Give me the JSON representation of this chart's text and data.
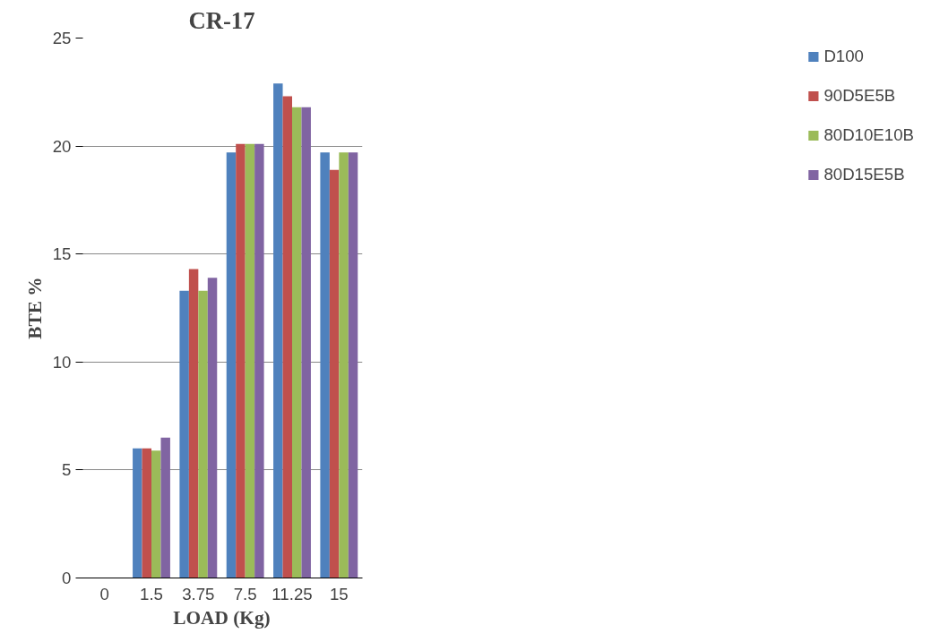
{
  "chart_data": {
    "type": "bar",
    "title": "CR-17",
    "xlabel": "LOAD (Kg)",
    "ylabel": "BTE %",
    "categories": [
      "0",
      "1.5",
      "3.75",
      "7.5",
      "11.25",
      "15"
    ],
    "series": [
      {
        "name": "D100",
        "color": "#4f81bd",
        "values": [
          0,
          6.0,
          13.3,
          19.7,
          22.9,
          19.7
        ]
      },
      {
        "name": "90D5E5B",
        "color": "#c0504d",
        "values": [
          0,
          6.0,
          14.3,
          20.1,
          22.3,
          18.9
        ]
      },
      {
        "name": "80D10E10B",
        "color": "#9bbb59",
        "values": [
          0,
          5.9,
          13.3,
          20.1,
          21.8,
          19.7
        ]
      },
      {
        "name": "80D15E5B",
        "color": "#8064a2",
        "values": [
          0,
          6.5,
          13.9,
          20.1,
          21.8,
          19.7
        ]
      }
    ],
    "ylim": [
      0,
      25
    ],
    "yticks": [
      0,
      5,
      10,
      15,
      20,
      25
    ],
    "grid": "y",
    "legend": "right"
  }
}
